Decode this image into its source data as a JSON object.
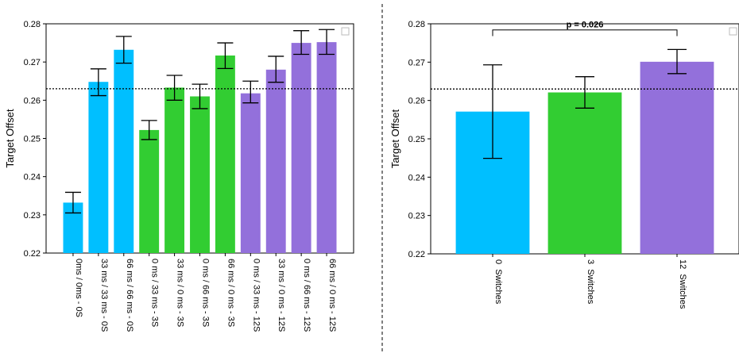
{
  "chart_data": [
    {
      "type": "bar",
      "categories": [
        "0ms / 0ms - 0S",
        "33 ms / 33 ms - 0S",
        "66 ms / 66 ms - 0S",
        "0 ms / 33 ms - 3S",
        "33 ms / 0 ms - 3S",
        "0 ms / 66 ms - 3S",
        "66 ms / 0 ms - 3S",
        "0 ms / 33 ms - 12S",
        "33 ms / 0 ms - 12S",
        "0 ms / 66 ms - 12S",
        "66 ms / 0 ms - 12S"
      ],
      "values": [
        0.2332,
        0.2648,
        0.2732,
        0.2522,
        0.2633,
        0.261,
        0.2717,
        0.2618,
        0.268,
        0.275,
        0.2752
      ],
      "err_low": [
        0.2305,
        0.2612,
        0.2697,
        0.2497,
        0.26,
        0.2578,
        0.2683,
        0.2593,
        0.2647,
        0.272,
        0.272
      ],
      "err_high": [
        0.2359,
        0.2682,
        0.2767,
        0.2547,
        0.2665,
        0.2642,
        0.275,
        0.265,
        0.2715,
        0.2782,
        0.2785
      ],
      "bar_colors": [
        "#00bfff",
        "#00bfff",
        "#00bfff",
        "#32cd32",
        "#32cd32",
        "#32cd32",
        "#32cd32",
        "#9370db",
        "#9370db",
        "#9370db",
        "#9370db"
      ],
      "ylabel": "Target Offset",
      "xlabel": "",
      "ylim": [
        0.22,
        0.28
      ],
      "yticks": [
        0.22,
        0.23,
        0.24,
        0.25,
        0.26,
        0.27,
        0.28
      ],
      "reference_line": 0.263,
      "grid": false,
      "legend": "top-right (empty)"
    },
    {
      "type": "bar",
      "categories": [
        "0  Switches",
        "3  Switches",
        "12  Switches"
      ],
      "values": [
        0.2571,
        0.2621,
        0.2701
      ],
      "err_low": [
        0.2449,
        0.258,
        0.267
      ],
      "err_high": [
        0.2693,
        0.2662,
        0.2733
      ],
      "bar_colors": [
        "#00bfff",
        "#32cd32",
        "#9370db"
      ],
      "ylabel": "Target Offset",
      "xlabel": "",
      "ylim": [
        0.22,
        0.28
      ],
      "yticks": [
        0.22,
        0.23,
        0.24,
        0.25,
        0.26,
        0.27,
        0.28
      ],
      "reference_line": 0.263,
      "annotation": {
        "text": "p = 0.026",
        "from": 0,
        "to": 2,
        "y": 0.2784,
        "drop_to": 0.2768
      },
      "grid": false,
      "legend": "top-right (empty)"
    }
  ]
}
